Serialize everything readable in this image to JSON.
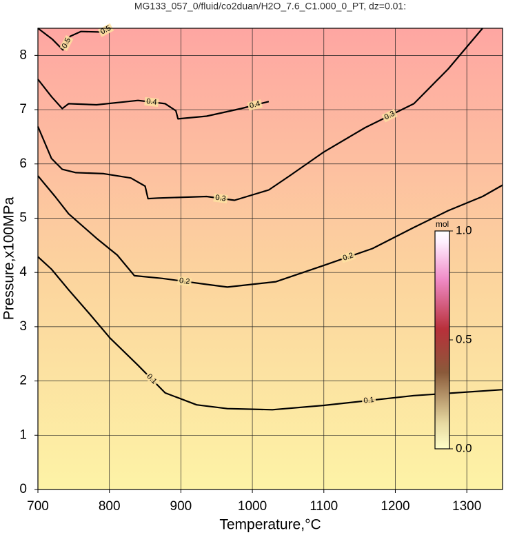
{
  "chart_data": {
    "type": "contour",
    "title": "MG133_057_0/fluid/co2duan/H2O_7.6_C1.000_0_PT, dz=0.01:",
    "x_label": "Temperature,°C",
    "y_label": "Pressure,x100MPa",
    "xlim": [
      700,
      1350
    ],
    "ylim": [
      0,
      8.5
    ],
    "xticks": [
      700,
      800,
      900,
      1000,
      1100,
      1200,
      1300
    ],
    "yticks": [
      0,
      1,
      2,
      3,
      4,
      5,
      6,
      7,
      8
    ],
    "grid": true,
    "series": [
      {
        "name": "0.1",
        "color": "#000000",
        "x": [
          700,
          719,
          743,
          772,
          801,
          840,
          878,
          922,
          965,
          1028,
          1100,
          1226,
          1350
        ],
        "y": [
          4.29,
          4.06,
          3.68,
          3.24,
          2.79,
          2.29,
          1.78,
          1.56,
          1.49,
          1.47,
          1.55,
          1.73,
          1.84
        ]
      },
      {
        "name": "0.2",
        "color": "#000000",
        "x": [
          700,
          724,
          743,
          782,
          811,
          835,
          874,
          936,
          965,
          1033,
          1100,
          1168,
          1226,
          1274,
          1322,
          1350
        ],
        "y": [
          5.78,
          5.4,
          5.08,
          4.63,
          4.32,
          3.94,
          3.89,
          3.78,
          3.73,
          3.83,
          4.13,
          4.44,
          4.83,
          5.14,
          5.4,
          5.61
        ]
      },
      {
        "name": "0.3",
        "color": "#000000",
        "x": [
          700,
          719,
          734,
          753,
          792,
          830,
          850,
          854,
          868,
          936,
          975,
          1023,
          1052,
          1100,
          1158,
          1226,
          1274,
          1322
        ],
        "y": [
          6.69,
          6.1,
          5.9,
          5.84,
          5.82,
          5.74,
          5.59,
          5.36,
          5.37,
          5.4,
          5.33,
          5.52,
          5.78,
          6.22,
          6.67,
          7.11,
          7.75,
          8.5
        ]
      },
      {
        "name": "0.4",
        "color": "#000000",
        "x": [
          700,
          719,
          734,
          743,
          782,
          840,
          878,
          893,
          896,
          936,
          984,
          1023
        ],
        "y": [
          7.56,
          7.24,
          7.02,
          7.11,
          7.09,
          7.17,
          7.11,
          6.98,
          6.83,
          6.88,
          7.02,
          7.15
        ]
      },
      {
        "name": "0.5",
        "color": "#000000",
        "x": [
          700,
          720,
          735,
          745,
          760,
          790,
          800
        ],
        "y": [
          8.5,
          8.3,
          8.1,
          8.35,
          8.44,
          8.43,
          8.5
        ]
      }
    ],
    "colorbar": {
      "label": "mol",
      "lim": [
        0,
        1
      ],
      "ticks": [
        {
          "value": 0,
          "label": "0.0"
        },
        {
          "value": 0.5,
          "label": "0.5"
        },
        {
          "value": 1,
          "label": "1.0"
        }
      ]
    }
  }
}
